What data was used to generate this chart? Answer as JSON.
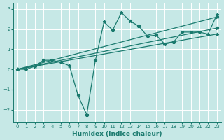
{
  "xlabel": "Humidex (Indice chaleur)",
  "xlim": [
    -0.5,
    23.5
  ],
  "ylim": [
    -2.6,
    3.3
  ],
  "yticks": [
    -2,
    -1,
    0,
    1,
    2,
    3
  ],
  "xticks": [
    0,
    1,
    2,
    3,
    4,
    5,
    6,
    7,
    8,
    9,
    10,
    11,
    12,
    13,
    14,
    15,
    16,
    17,
    18,
    19,
    20,
    21,
    22,
    23
  ],
  "bg_color": "#c6e8e6",
  "grid_color": "#ffffff",
  "line_color": "#1a7a6e",
  "main_line": {
    "x": [
      0,
      1,
      2,
      3,
      4,
      5,
      6,
      7,
      8,
      9,
      10,
      11,
      12,
      13,
      14,
      15,
      16,
      17,
      18,
      19,
      20,
      21,
      22,
      23
    ],
    "y": [
      0.0,
      0.0,
      0.15,
      0.45,
      0.45,
      0.35,
      0.18,
      -1.3,
      -2.25,
      0.45,
      2.35,
      1.95,
      2.82,
      2.4,
      2.15,
      1.65,
      1.7,
      1.25,
      1.35,
      1.85,
      1.85,
      1.85,
      1.75,
      2.7
    ]
  },
  "linear_lines": [
    {
      "x": [
        0,
        23
      ],
      "y": [
        0.0,
        2.6
      ]
    },
    {
      "x": [
        0,
        23
      ],
      "y": [
        0.0,
        2.05
      ]
    },
    {
      "x": [
        0,
        23
      ],
      "y": [
        0.0,
        1.75
      ]
    }
  ],
  "xlabel_fontsize": 6.5,
  "tick_fontsize": 5.0,
  "linewidth": 0.9,
  "marker_size": 3.5
}
